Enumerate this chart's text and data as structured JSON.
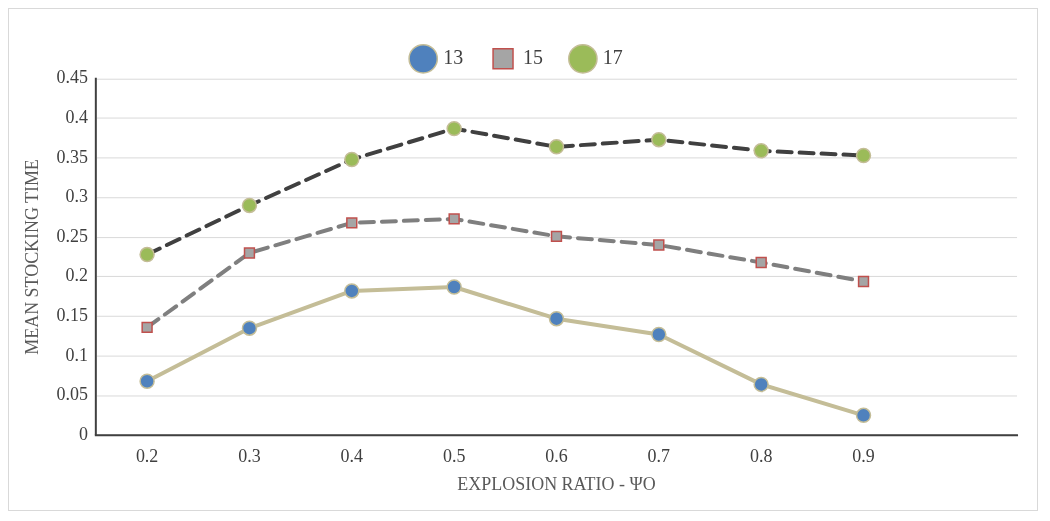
{
  "chart_data": {
    "type": "line",
    "xlabel": "EXPLOSION RATIO - ΨO",
    "ylabel": "MEAN STOCKING TIME",
    "categories": [
      "0.2",
      "0.3",
      "0.4",
      "0.5",
      "0.6",
      "0.7",
      "0.8",
      "0.9",
      null
    ],
    "series": [
      {
        "name": "13",
        "color": "#c4bd97",
        "colors": [
          "#4f81bd",
          "#4f81bd",
          "#4f81bd",
          "#4f81bd",
          "#4f81bd",
          "#4f81bd",
          "#4f81bd",
          "#4f81bd",
          "#4f81bd"
        ],
        "marker": "circle",
        "line_style": "solid",
        "values": [
          0.068,
          0.135,
          0.182,
          0.187,
          0.147,
          0.127,
          0.064,
          0.025,
          null
        ]
      },
      {
        "name": "15",
        "color": "#7f7f7f",
        "colors": [
          "#a5a5a5",
          "#a5a5a5",
          "#a5a5a5",
          "#a5a5a5",
          "#a5a5a5",
          "#a5a5a5",
          "#a5a5a5",
          "#a5a5a5",
          "#a5a5a5"
        ],
        "marker": "square",
        "line_style": "dashed",
        "values": [
          0.136,
          0.23,
          0.268,
          0.273,
          0.251,
          0.24,
          0.218,
          0.194,
          null
        ]
      },
      {
        "name": "17",
        "color": "#404040",
        "colors": [
          "#9bbb59",
          "#9bbb59",
          "#9bbb59",
          "#9bbb59",
          "#9bbb59",
          "#9bbb59",
          "#9bbb59",
          "#9bbb59",
          "#9bbb59"
        ],
        "marker": "circle",
        "line_style": "dashed",
        "values": [
          0.228,
          0.29,
          0.348,
          0.387,
          0.364,
          0.373,
          0.359,
          0.353,
          null
        ]
      }
    ],
    "ylim": [
      0,
      0.45
    ],
    "yticks": [
      0,
      0.05,
      0.1,
      0.15,
      0.2,
      0.25,
      0.3,
      0.35,
      0.4,
      0.45
    ],
    "grid": "y",
    "legend": "top"
  }
}
